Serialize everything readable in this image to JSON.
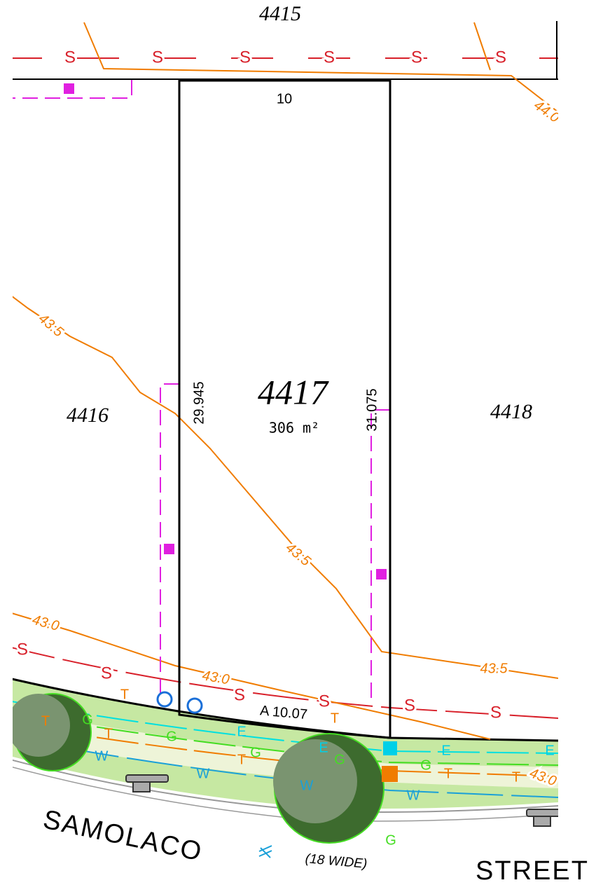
{
  "lots": {
    "north": "4415",
    "west": "4416",
    "east": "4418",
    "subject": "4417",
    "area": "306 m²"
  },
  "dimensions": {
    "rear": "10",
    "left": "29.945",
    "right": "31.075",
    "front": "A 10.07"
  },
  "contours": [
    "44.0",
    "43.5",
    "43.5",
    "43.0",
    "43.0",
    "43.5",
    "43.0"
  ],
  "services": {
    "sewer": [
      "S",
      "S",
      "S",
      "S",
      "S",
      "S",
      "S",
      "S",
      "S",
      "S",
      "S",
      "S"
    ],
    "telecom": [
      "T",
      "T",
      "T",
      "T",
      "T",
      "T",
      "T"
    ],
    "gas": [
      "G",
      "G",
      "G",
      "G",
      "G",
      "G"
    ],
    "electric": [
      "E",
      "E",
      "E",
      "E"
    ],
    "water": [
      "W",
      "W",
      "W",
      "W"
    ]
  },
  "street": {
    "name_left": "SAMOLACO",
    "name_right": "STREET",
    "width": "(18 WIDE)"
  }
}
